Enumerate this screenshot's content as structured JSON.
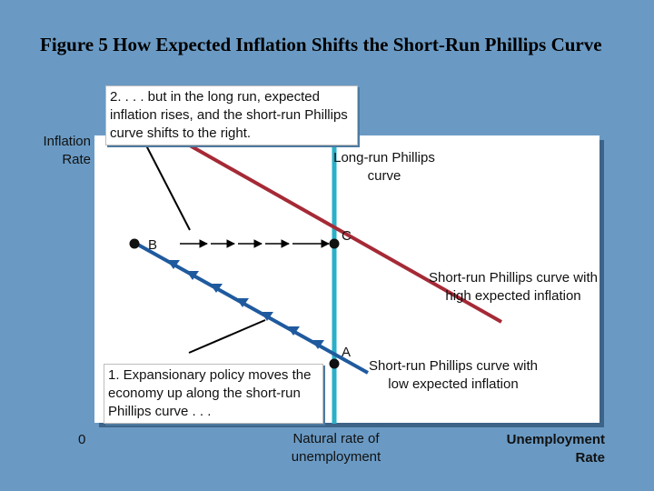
{
  "title": "Figure 5 How Expected Inflation Shifts the Short-Run Phillips Curve",
  "axes": {
    "y_label_line1": "Inflation",
    "y_label_line2": "Rate",
    "x_label_line1": "Unemployment",
    "x_label_line2": "Rate",
    "origin": "0"
  },
  "annotations": {
    "top_note": "2. . . . but in the long run, expected inflation rises, and the short-run Phillips curve shifts to the right.",
    "bottom_note": "1. Expansionary policy moves the economy up along the short-run Phillips curve . . .",
    "long_run": "Long-run Phillips curve",
    "natural_rate": "Natural rate of unemployment",
    "sr_high": "Short-run Phillips curve with high expected inflation",
    "sr_low": "Short-run Phillips curve with low expected inflation"
  },
  "points": {
    "A": "A",
    "B": "B",
    "C": "C"
  },
  "colors": {
    "background": "#6a9ac4",
    "long_run_curve": "#2ab0c8",
    "sr_high_curve": "#a52a36",
    "sr_low_curve": "#1f5a9e",
    "arrow": "#000000"
  }
}
